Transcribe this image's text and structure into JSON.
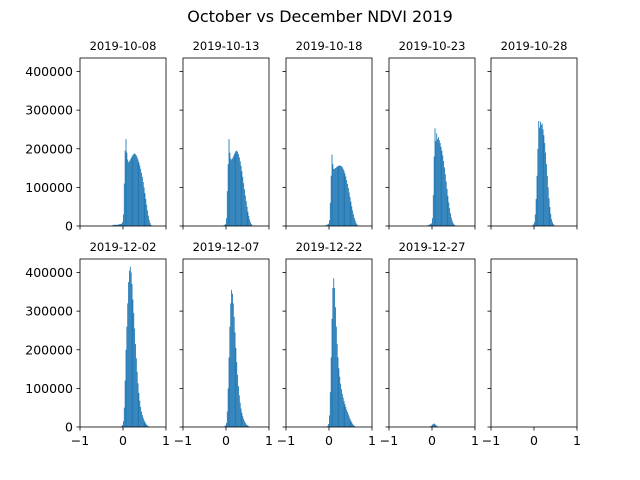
{
  "figure": {
    "suptitle": "October vs December NDVI 2019"
  },
  "chart_data": {
    "type": "bar",
    "shared_axes": {
      "xlim": [
        -1,
        1
      ],
      "ylim": [
        0,
        435000
      ],
      "xticks": [
        -1,
        0,
        1
      ],
      "yticks": [
        0,
        100000,
        200000,
        300000,
        400000
      ],
      "grid": false
    },
    "bin_width": 0.02,
    "color": "#1f77b4",
    "panels": [
      {
        "title": "2019-10-08",
        "bins": [
          [
            -0.24,
            3000
          ],
          [
            -0.22,
            3000
          ],
          [
            -0.2,
            3000
          ],
          [
            -0.18,
            3000
          ],
          [
            -0.16,
            3000
          ],
          [
            -0.14,
            3000
          ],
          [
            -0.12,
            4000
          ],
          [
            -0.1,
            4000
          ],
          [
            -0.08,
            5000
          ],
          [
            -0.06,
            5000
          ],
          [
            -0.04,
            6000
          ],
          [
            -0.02,
            10000
          ],
          [
            0.0,
            30000
          ],
          [
            0.02,
            110000
          ],
          [
            0.04,
            195000
          ],
          [
            0.06,
            225000
          ],
          [
            0.08,
            190000
          ],
          [
            0.1,
            172000
          ],
          [
            0.12,
            165000
          ],
          [
            0.14,
            168000
          ],
          [
            0.16,
            172000
          ],
          [
            0.18,
            176000
          ],
          [
            0.2,
            180000
          ],
          [
            0.22,
            184000
          ],
          [
            0.24,
            186000
          ],
          [
            0.26,
            188000
          ],
          [
            0.28,
            186000
          ],
          [
            0.3,
            183000
          ],
          [
            0.32,
            178000
          ],
          [
            0.34,
            172000
          ],
          [
            0.36,
            165000
          ],
          [
            0.38,
            157000
          ],
          [
            0.4,
            148000
          ],
          [
            0.42,
            138000
          ],
          [
            0.44,
            127000
          ],
          [
            0.46,
            114000
          ],
          [
            0.48,
            100000
          ],
          [
            0.5,
            85000
          ],
          [
            0.52,
            70000
          ],
          [
            0.54,
            55000
          ],
          [
            0.56,
            40000
          ],
          [
            0.58,
            27000
          ],
          [
            0.6,
            16000
          ],
          [
            0.62,
            8000
          ],
          [
            0.64,
            3000
          ],
          [
            0.66,
            1000
          ]
        ]
      },
      {
        "title": "2019-10-13",
        "bins": [
          [
            -0.06,
            2000
          ],
          [
            -0.04,
            3000
          ],
          [
            -0.02,
            5000
          ],
          [
            0.0,
            20000
          ],
          [
            0.02,
            90000
          ],
          [
            0.04,
            160000
          ],
          [
            0.06,
            225000
          ],
          [
            0.08,
            190000
          ],
          [
            0.1,
            175000
          ],
          [
            0.12,
            172000
          ],
          [
            0.14,
            175000
          ],
          [
            0.16,
            180000
          ],
          [
            0.18,
            185000
          ],
          [
            0.2,
            190000
          ],
          [
            0.22,
            194000
          ],
          [
            0.24,
            195000
          ],
          [
            0.26,
            192000
          ],
          [
            0.28,
            186000
          ],
          [
            0.3,
            178000
          ],
          [
            0.32,
            168000
          ],
          [
            0.34,
            156000
          ],
          [
            0.36,
            142000
          ],
          [
            0.38,
            127000
          ],
          [
            0.4,
            111000
          ],
          [
            0.42,
            95000
          ],
          [
            0.44,
            79000
          ],
          [
            0.46,
            64000
          ],
          [
            0.48,
            50000
          ],
          [
            0.5,
            37000
          ],
          [
            0.52,
            26000
          ],
          [
            0.54,
            17000
          ],
          [
            0.56,
            10000
          ],
          [
            0.58,
            5000
          ],
          [
            0.6,
            2000
          ]
        ]
      },
      {
        "title": "2019-10-18",
        "bins": [
          [
            -0.08,
            2000
          ],
          [
            -0.06,
            3000
          ],
          [
            -0.04,
            4000
          ],
          [
            -0.02,
            6000
          ],
          [
            0.0,
            15000
          ],
          [
            0.02,
            60000
          ],
          [
            0.04,
            130000
          ],
          [
            0.06,
            185000
          ],
          [
            0.08,
            160000
          ],
          [
            0.1,
            148000
          ],
          [
            0.12,
            148000
          ],
          [
            0.14,
            150000
          ],
          [
            0.16,
            152000
          ],
          [
            0.18,
            154000
          ],
          [
            0.2,
            155000
          ],
          [
            0.22,
            156000
          ],
          [
            0.24,
            157000
          ],
          [
            0.26,
            156000
          ],
          [
            0.28,
            155000
          ],
          [
            0.3,
            152000
          ],
          [
            0.32,
            148000
          ],
          [
            0.34,
            143000
          ],
          [
            0.36,
            136000
          ],
          [
            0.38,
            128000
          ],
          [
            0.4,
            119000
          ],
          [
            0.42,
            109000
          ],
          [
            0.44,
            98000
          ],
          [
            0.46,
            87000
          ],
          [
            0.48,
            75000
          ],
          [
            0.5,
            63000
          ],
          [
            0.52,
            51000
          ],
          [
            0.54,
            40000
          ],
          [
            0.56,
            30000
          ],
          [
            0.58,
            21000
          ],
          [
            0.6,
            14000
          ],
          [
            0.62,
            8000
          ],
          [
            0.64,
            4000
          ],
          [
            0.66,
            2000
          ]
        ]
      },
      {
        "title": "2019-10-23",
        "bins": [
          [
            -0.1,
            2000
          ],
          [
            -0.08,
            3000
          ],
          [
            -0.06,
            4000
          ],
          [
            -0.04,
            5000
          ],
          [
            -0.02,
            7000
          ],
          [
            0.0,
            20000
          ],
          [
            0.02,
            80000
          ],
          [
            0.04,
            180000
          ],
          [
            0.06,
            253000
          ],
          [
            0.08,
            220000
          ],
          [
            0.1,
            240000
          ],
          [
            0.12,
            225000
          ],
          [
            0.14,
            230000
          ],
          [
            0.16,
            222000
          ],
          [
            0.18,
            215000
          ],
          [
            0.2,
            205000
          ],
          [
            0.22,
            195000
          ],
          [
            0.24,
            183000
          ],
          [
            0.26,
            168000
          ],
          [
            0.28,
            152000
          ],
          [
            0.3,
            134000
          ],
          [
            0.32,
            115000
          ],
          [
            0.34,
            96000
          ],
          [
            0.36,
            78000
          ],
          [
            0.38,
            61000
          ],
          [
            0.4,
            46000
          ],
          [
            0.42,
            33000
          ],
          [
            0.44,
            22000
          ],
          [
            0.46,
            14000
          ],
          [
            0.48,
            8000
          ],
          [
            0.5,
            4000
          ],
          [
            0.52,
            2000
          ]
        ]
      },
      {
        "title": "2019-10-28",
        "bins": [
          [
            -0.04,
            2000
          ],
          [
            -0.02,
            4000
          ],
          [
            0.0,
            10000
          ],
          [
            0.02,
            30000
          ],
          [
            0.04,
            70000
          ],
          [
            0.06,
            130000
          ],
          [
            0.08,
            200000
          ],
          [
            0.1,
            272000
          ],
          [
            0.12,
            255000
          ],
          [
            0.14,
            270000
          ],
          [
            0.16,
            262000
          ],
          [
            0.18,
            265000
          ],
          [
            0.2,
            250000
          ],
          [
            0.22,
            235000
          ],
          [
            0.24,
            215000
          ],
          [
            0.26,
            190000
          ],
          [
            0.28,
            160000
          ],
          [
            0.3,
            130000
          ],
          [
            0.32,
            100000
          ],
          [
            0.34,
            72000
          ],
          [
            0.36,
            49000
          ],
          [
            0.38,
            31000
          ],
          [
            0.4,
            18000
          ],
          [
            0.42,
            10000
          ],
          [
            0.44,
            5000
          ],
          [
            0.46,
            2000
          ]
        ]
      },
      {
        "title": "2019-12-02",
        "bins": [
          [
            -0.04,
            2000
          ],
          [
            -0.02,
            5000
          ],
          [
            0.0,
            15000
          ],
          [
            0.02,
            50000
          ],
          [
            0.04,
            120000
          ],
          [
            0.06,
            200000
          ],
          [
            0.08,
            260000
          ],
          [
            0.1,
            320000
          ],
          [
            0.12,
            375000
          ],
          [
            0.14,
            405000
          ],
          [
            0.16,
            415000
          ],
          [
            0.18,
            400000
          ],
          [
            0.2,
            370000
          ],
          [
            0.22,
            330000
          ],
          [
            0.24,
            295000
          ],
          [
            0.26,
            255000
          ],
          [
            0.28,
            215000
          ],
          [
            0.3,
            178000
          ],
          [
            0.32,
            143000
          ],
          [
            0.34,
            113000
          ],
          [
            0.36,
            88000
          ],
          [
            0.38,
            68000
          ],
          [
            0.4,
            52000
          ],
          [
            0.42,
            40000
          ],
          [
            0.44,
            31000
          ],
          [
            0.46,
            24000
          ],
          [
            0.48,
            18000
          ],
          [
            0.5,
            13000
          ],
          [
            0.52,
            9000
          ],
          [
            0.54,
            6000
          ],
          [
            0.56,
            4000
          ],
          [
            0.58,
            2000
          ]
        ]
      },
      {
        "title": "2019-12-07",
        "bins": [
          [
            -0.04,
            2000
          ],
          [
            -0.02,
            4000
          ],
          [
            0.0,
            10000
          ],
          [
            0.02,
            40000
          ],
          [
            0.04,
            100000
          ],
          [
            0.06,
            180000
          ],
          [
            0.08,
            260000
          ],
          [
            0.1,
            320000
          ],
          [
            0.12,
            355000
          ],
          [
            0.14,
            345000
          ],
          [
            0.16,
            320000
          ],
          [
            0.18,
            285000
          ],
          [
            0.2,
            245000
          ],
          [
            0.22,
            205000
          ],
          [
            0.24,
            168000
          ],
          [
            0.26,
            135000
          ],
          [
            0.28,
            106000
          ],
          [
            0.3,
            82000
          ],
          [
            0.32,
            63000
          ],
          [
            0.34,
            48000
          ],
          [
            0.36,
            37000
          ],
          [
            0.38,
            28000
          ],
          [
            0.4,
            21000
          ],
          [
            0.42,
            15000
          ],
          [
            0.44,
            11000
          ],
          [
            0.46,
            7000
          ],
          [
            0.48,
            5000
          ],
          [
            0.5,
            3000
          ],
          [
            0.52,
            2000
          ]
        ]
      },
      {
        "title": "2019-12-22",
        "bins": [
          [
            -0.04,
            3000
          ],
          [
            -0.02,
            8000
          ],
          [
            0.0,
            30000
          ],
          [
            0.02,
            90000
          ],
          [
            0.04,
            180000
          ],
          [
            0.06,
            280000
          ],
          [
            0.08,
            360000
          ],
          [
            0.1,
            385000
          ],
          [
            0.12,
            360000
          ],
          [
            0.14,
            310000
          ],
          [
            0.16,
            260000
          ],
          [
            0.18,
            215000
          ],
          [
            0.2,
            180000
          ],
          [
            0.22,
            152000
          ],
          [
            0.24,
            130000
          ],
          [
            0.26,
            112000
          ],
          [
            0.28,
            98000
          ],
          [
            0.3,
            86000
          ],
          [
            0.32,
            76000
          ],
          [
            0.34,
            67000
          ],
          [
            0.36,
            59000
          ],
          [
            0.38,
            52000
          ],
          [
            0.4,
            45000
          ],
          [
            0.42,
            39000
          ],
          [
            0.44,
            33000
          ],
          [
            0.46,
            27000
          ],
          [
            0.48,
            21000
          ],
          [
            0.5,
            16000
          ],
          [
            0.52,
            12000
          ],
          [
            0.54,
            8000
          ],
          [
            0.56,
            5000
          ],
          [
            0.58,
            3000
          ],
          [
            0.6,
            1500
          ]
        ]
      },
      {
        "title": "2019-12-27",
        "bins": [
          [
            -0.06,
            1000
          ],
          [
            -0.04,
            2000
          ],
          [
            -0.02,
            3500
          ],
          [
            0.0,
            6000
          ],
          [
            0.02,
            8000
          ],
          [
            0.04,
            9000
          ],
          [
            0.06,
            7000
          ],
          [
            0.08,
            5000
          ],
          [
            0.1,
            3000
          ],
          [
            0.12,
            1500
          ]
        ]
      },
      {
        "title": "",
        "bins": []
      }
    ]
  }
}
